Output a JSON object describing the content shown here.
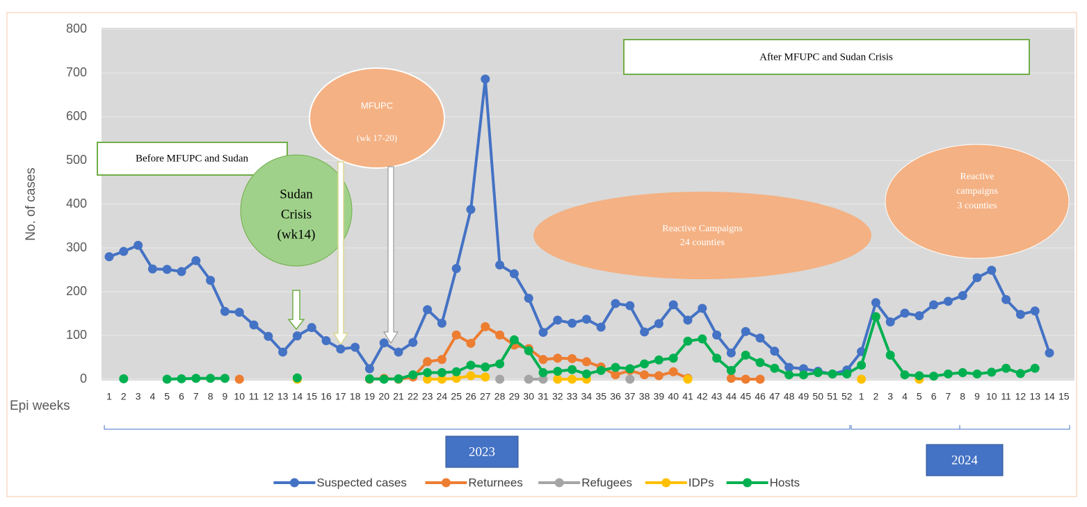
{
  "chart_data": {
    "type": "line",
    "y_label": "No. of cases",
    "x_label": "Epi weeks",
    "categories": [
      "1",
      "2",
      "3",
      "4",
      "5",
      "6",
      "7",
      "8",
      "9",
      "10",
      "11",
      "12",
      "13",
      "14",
      "15",
      "16",
      "17",
      "18",
      "19",
      "20",
      "21",
      "22",
      "23",
      "24",
      "25",
      "26",
      "27",
      "28",
      "29",
      "30",
      "31",
      "32",
      "33",
      "34",
      "35",
      "36",
      "37",
      "38",
      "39",
      "40",
      "41",
      "42",
      "43",
      "44",
      "45",
      "46",
      "47",
      "48",
      "49",
      "50",
      "51",
      "52",
      "1",
      "2",
      "3",
      "4",
      "5",
      "6",
      "7",
      "8",
      "9",
      "10",
      "11",
      "12",
      "13",
      "14",
      "15"
    ],
    "year_groups": [
      "2023",
      "2024"
    ],
    "ylim": [
      0,
      800
    ],
    "yticks": [
      0,
      100,
      200,
      300,
      400,
      500,
      600,
      700,
      800
    ],
    "grid": true,
    "legend": "bottom",
    "series": [
      {
        "name": "Suspected cases",
        "color": "#4472c4",
        "values": [
          280,
          292,
          306,
          252,
          251,
          246,
          271,
          226,
          155,
          153,
          124,
          98,
          62,
          99,
          118,
          88,
          69,
          73,
          24,
          83,
          62,
          84,
          159,
          128,
          253,
          388,
          686,
          261,
          241,
          185,
          107,
          135,
          128,
          137,
          119,
          173,
          168,
          108,
          127,
          170,
          135,
          162,
          101,
          60,
          109,
          94,
          64,
          27,
          24,
          18,
          12,
          21,
          63,
          175,
          131,
          151,
          145,
          170,
          178,
          191,
          232,
          249,
          182,
          148,
          156,
          60,
          null
        ]
      },
      {
        "name": "Returnees",
        "color": "#ed7d31",
        "values": [
          null,
          null,
          null,
          null,
          null,
          null,
          null,
          null,
          null,
          0,
          null,
          null,
          null,
          null,
          null,
          null,
          null,
          null,
          0,
          2,
          0,
          5,
          40,
          45,
          101,
          82,
          120,
          101,
          78,
          70,
          45,
          48,
          47,
          40,
          28,
          10,
          20,
          10,
          8,
          17,
          2,
          null,
          null,
          2,
          0,
          0,
          null,
          null,
          null,
          null,
          null,
          null,
          null,
          null,
          null,
          null,
          null,
          null,
          null,
          null,
          null,
          null,
          null,
          null,
          null,
          null,
          null
        ]
      },
      {
        "name": "Refugees",
        "color": "#a5a5a5",
        "values": [
          null,
          null,
          null,
          null,
          null,
          null,
          null,
          null,
          null,
          null,
          null,
          null,
          null,
          null,
          null,
          null,
          null,
          null,
          null,
          null,
          null,
          null,
          null,
          null,
          null,
          null,
          null,
          0,
          null,
          0,
          0,
          null,
          null,
          null,
          null,
          null,
          0,
          null,
          null,
          null,
          null,
          null,
          null,
          null,
          null,
          null,
          null,
          null,
          null,
          null,
          null,
          null,
          null,
          null,
          null,
          null,
          null,
          null,
          null,
          null,
          null,
          null,
          null,
          null,
          null,
          null,
          null
        ]
      },
      {
        "name": "IDPs",
        "color": "#ffc000",
        "values": [
          null,
          null,
          null,
          null,
          null,
          null,
          null,
          null,
          null,
          null,
          null,
          null,
          null,
          0,
          null,
          null,
          null,
          null,
          null,
          null,
          null,
          null,
          0,
          0,
          2,
          8,
          5,
          null,
          null,
          null,
          null,
          0,
          0,
          0,
          null,
          null,
          null,
          null,
          null,
          null,
          0,
          null,
          null,
          null,
          null,
          null,
          null,
          null,
          null,
          null,
          null,
          null,
          0,
          null,
          null,
          null,
          0,
          null,
          null,
          null,
          null,
          null,
          null,
          null,
          null,
          null,
          null
        ]
      },
      {
        "name": "Hosts",
        "color": "#00b050",
        "values": [
          null,
          1,
          null,
          null,
          0,
          1,
          2,
          2,
          2,
          null,
          null,
          null,
          null,
          3,
          null,
          null,
          null,
          null,
          1,
          0,
          1,
          10,
          15,
          15,
          17,
          32,
          28,
          35,
          90,
          65,
          15,
          18,
          22,
          12,
          20,
          27,
          24,
          35,
          44,
          48,
          87,
          92,
          48,
          20,
          55,
          38,
          25,
          10,
          10,
          15,
          12,
          12,
          32,
          143,
          55,
          10,
          8,
          7,
          12,
          15,
          12,
          16,
          25,
          13,
          25,
          null,
          null
        ]
      }
    ],
    "annotations": [
      "After MFUPC and Sudan Crisis",
      "Before MFUPC and Sudan",
      "Sudan",
      "Crisis",
      "(wk14)",
      "`",
      "MFUPC",
      "(wk 17-20)",
      "Reactive Campaigns",
      "24 counties",
      "Reactive",
      "campaigns",
      "3 counties"
    ]
  }
}
